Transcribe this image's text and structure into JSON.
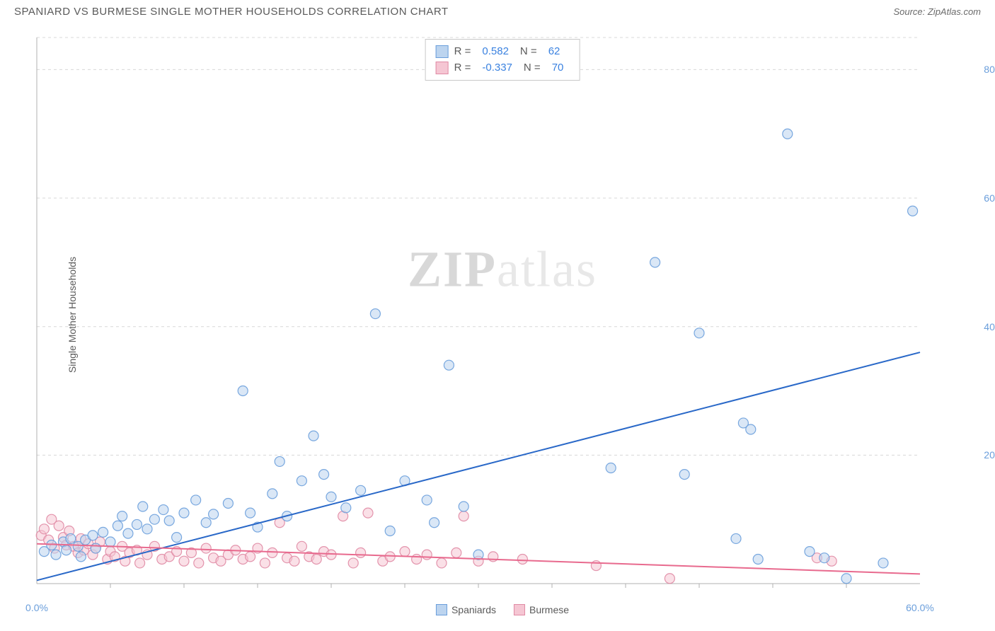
{
  "title": "SPANIARD VS BURMESE SINGLE MOTHER HOUSEHOLDS CORRELATION CHART",
  "source": "Source: ZipAtlas.com",
  "watermark_bold": "ZIP",
  "watermark_light": "atlas",
  "y_axis_label": "Single Mother Households",
  "legend": {
    "series1": {
      "label": "Spaniards",
      "fill": "#bcd4ef",
      "stroke": "#6a9edb"
    },
    "series2": {
      "label": "Burmese",
      "fill": "#f5c6d3",
      "stroke": "#e08aa4"
    }
  },
  "stats": {
    "series1": {
      "r_label": "R =",
      "r_value": "0.582",
      "n_label": "N =",
      "n_value": "62"
    },
    "series2": {
      "r_label": "R =",
      "r_value": "-0.337",
      "n_label": "N =",
      "n_value": "70"
    }
  },
  "chart": {
    "type": "scatter",
    "xlim": [
      0,
      60
    ],
    "ylim": [
      0,
      85
    ],
    "x_ticks": [
      {
        "v": 0,
        "l": "0.0%"
      },
      {
        "v": 60,
        "l": "60.0%"
      }
    ],
    "x_minor_ticks": [
      5,
      10,
      15,
      20,
      25,
      30,
      35,
      40,
      45,
      50,
      55
    ],
    "y_ticks": [
      {
        "v": 20,
        "l": "20.0%"
      },
      {
        "v": 40,
        "l": "40.0%"
      },
      {
        "v": 60,
        "l": "60.0%"
      },
      {
        "v": 80,
        "l": "80.0%"
      }
    ],
    "grid_color": "#d8d8d8",
    "axis_color": "#b0b0b0",
    "background": "#ffffff",
    "marker_radius": 7,
    "marker_opacity": 0.55,
    "trend_lines": {
      "series1": {
        "x1": 0,
        "y1": 0.5,
        "x2": 60,
        "y2": 36,
        "color": "#2968c8",
        "width": 2
      },
      "series2": {
        "x1": 0,
        "y1": 6.2,
        "x2": 60,
        "y2": 1.5,
        "color": "#e86a8e",
        "width": 2
      }
    },
    "series1_points": [
      [
        0.5,
        5
      ],
      [
        1,
        6
      ],
      [
        1.3,
        4.5
      ],
      [
        1.8,
        6.5
      ],
      [
        2,
        5.2
      ],
      [
        2.3,
        7
      ],
      [
        2.8,
        5.8
      ],
      [
        3,
        4.2
      ],
      [
        3.3,
        6.8
      ],
      [
        3.8,
        7.5
      ],
      [
        4,
        5.5
      ],
      [
        4.5,
        8
      ],
      [
        5,
        6.5
      ],
      [
        5.5,
        9
      ],
      [
        5.8,
        10.5
      ],
      [
        6.2,
        7.8
      ],
      [
        6.8,
        9.2
      ],
      [
        7.2,
        12
      ],
      [
        7.5,
        8.5
      ],
      [
        8,
        10
      ],
      [
        8.6,
        11.5
      ],
      [
        9,
        9.8
      ],
      [
        9.5,
        7.2
      ],
      [
        10,
        11
      ],
      [
        10.8,
        13
      ],
      [
        11.5,
        9.5
      ],
      [
        12,
        10.8
      ],
      [
        13,
        12.5
      ],
      [
        14,
        30
      ],
      [
        14.5,
        11
      ],
      [
        15,
        8.8
      ],
      [
        16,
        14
      ],
      [
        16.5,
        19
      ],
      [
        17,
        10.5
      ],
      [
        18,
        16
      ],
      [
        18.8,
        23
      ],
      [
        19.5,
        17
      ],
      [
        20,
        13.5
      ],
      [
        21,
        11.8
      ],
      [
        22,
        14.5
      ],
      [
        23,
        42
      ],
      [
        24,
        8.2
      ],
      [
        25,
        16
      ],
      [
        26.5,
        13
      ],
      [
        27,
        9.5
      ],
      [
        28,
        34
      ],
      [
        29,
        12
      ],
      [
        30,
        4.5
      ],
      [
        39,
        18
      ],
      [
        42,
        50
      ],
      [
        44,
        17
      ],
      [
        45,
        39
      ],
      [
        47.5,
        7
      ],
      [
        48,
        25
      ],
      [
        48.5,
        24
      ],
      [
        49,
        3.8
      ],
      [
        51,
        70
      ],
      [
        52.5,
        5
      ],
      [
        53.5,
        4
      ],
      [
        55,
        0.8
      ],
      [
        57.5,
        3.2
      ],
      [
        59.5,
        58
      ]
    ],
    "series2_points": [
      [
        0.3,
        7.5
      ],
      [
        0.5,
        8.5
      ],
      [
        0.8,
        6.8
      ],
      [
        1,
        10
      ],
      [
        1.2,
        5.5
      ],
      [
        1.5,
        9
      ],
      [
        1.8,
        7.2
      ],
      [
        2,
        6
      ],
      [
        2.2,
        8.2
      ],
      [
        2.5,
        5.8
      ],
      [
        2.8,
        4.8
      ],
      [
        3,
        7
      ],
      [
        3.2,
        5.2
      ],
      [
        3.5,
        6.2
      ],
      [
        3.8,
        4.5
      ],
      [
        4,
        5.5
      ],
      [
        4.3,
        6.5
      ],
      [
        4.8,
        3.8
      ],
      [
        5,
        5
      ],
      [
        5.3,
        4.2
      ],
      [
        5.8,
        5.8
      ],
      [
        6,
        3.5
      ],
      [
        6.3,
        4.8
      ],
      [
        6.8,
        5.2
      ],
      [
        7,
        3.2
      ],
      [
        7.5,
        4.5
      ],
      [
        8,
        5.8
      ],
      [
        8.5,
        3.8
      ],
      [
        9,
        4.2
      ],
      [
        9.5,
        5
      ],
      [
        10,
        3.5
      ],
      [
        10.5,
        4.8
      ],
      [
        11,
        3.2
      ],
      [
        11.5,
        5.5
      ],
      [
        12,
        4
      ],
      [
        12.5,
        3.5
      ],
      [
        13,
        4.5
      ],
      [
        13.5,
        5.2
      ],
      [
        14,
        3.8
      ],
      [
        14.5,
        4.2
      ],
      [
        15,
        5.5
      ],
      [
        15.5,
        3.2
      ],
      [
        16,
        4.8
      ],
      [
        16.5,
        9.5
      ],
      [
        17,
        4
      ],
      [
        17.5,
        3.5
      ],
      [
        18,
        5.8
      ],
      [
        18.5,
        4.2
      ],
      [
        19,
        3.8
      ],
      [
        19.5,
        5
      ],
      [
        20,
        4.5
      ],
      [
        20.8,
        10.5
      ],
      [
        21.5,
        3.2
      ],
      [
        22,
        4.8
      ],
      [
        22.5,
        11
      ],
      [
        23.5,
        3.5
      ],
      [
        24,
        4.2
      ],
      [
        25,
        5
      ],
      [
        25.8,
        3.8
      ],
      [
        26.5,
        4.5
      ],
      [
        27.5,
        3.2
      ],
      [
        28.5,
        4.8
      ],
      [
        29,
        10.5
      ],
      [
        30,
        3.5
      ],
      [
        31,
        4.2
      ],
      [
        33,
        3.8
      ],
      [
        38,
        2.8
      ],
      [
        43,
        0.8
      ],
      [
        53,
        4
      ],
      [
        54,
        3.5
      ]
    ]
  }
}
